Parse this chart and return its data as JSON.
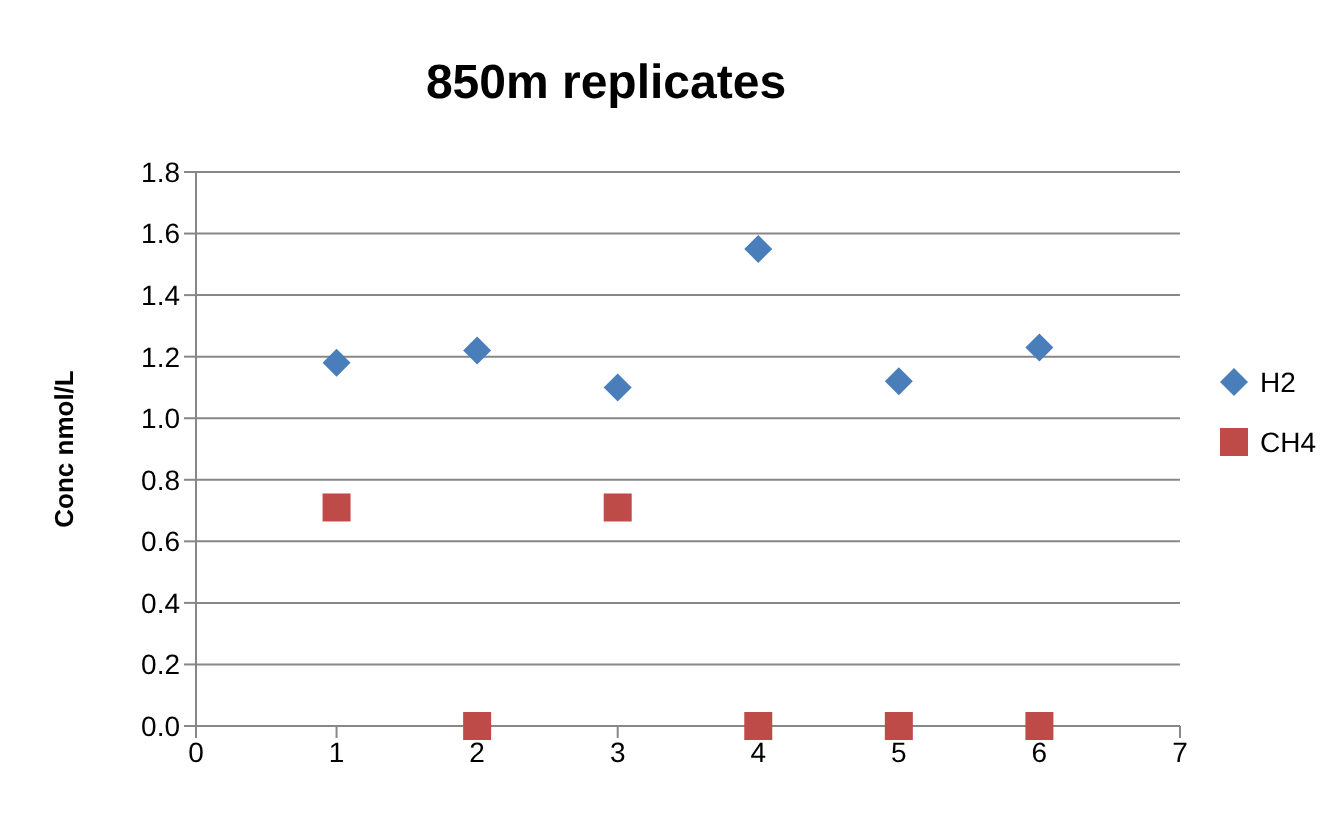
{
  "chart_data": {
    "type": "scatter",
    "title": "850m replicates",
    "ylabel": "Conc nmol/L",
    "x": [
      1,
      2,
      3,
      4,
      5,
      6
    ],
    "series": [
      {
        "name": "H2",
        "color": "#4a7ebb",
        "values": [
          1.18,
          1.22,
          1.1,
          1.55,
          1.12,
          1.23
        ],
        "marker": "diamond"
      },
      {
        "name": "CH4",
        "color": "#be4b48",
        "values": [
          0.71,
          0,
          0.71,
          0,
          0,
          0
        ],
        "marker": "square"
      }
    ],
    "xlim": [
      0,
      7
    ],
    "xticks": [
      0,
      1,
      2,
      3,
      4,
      5,
      6,
      7
    ],
    "ylim": [
      0,
      1.8
    ],
    "yticks": [
      {
        "value": 0,
        "label": "0.0"
      },
      0.2,
      0.4,
      0.6,
      0.8,
      {
        "value": 1,
        "label": "1.0"
      },
      1.2,
      1.4,
      1.6,
      1.8
    ],
    "grid": "y",
    "legend": "right"
  }
}
